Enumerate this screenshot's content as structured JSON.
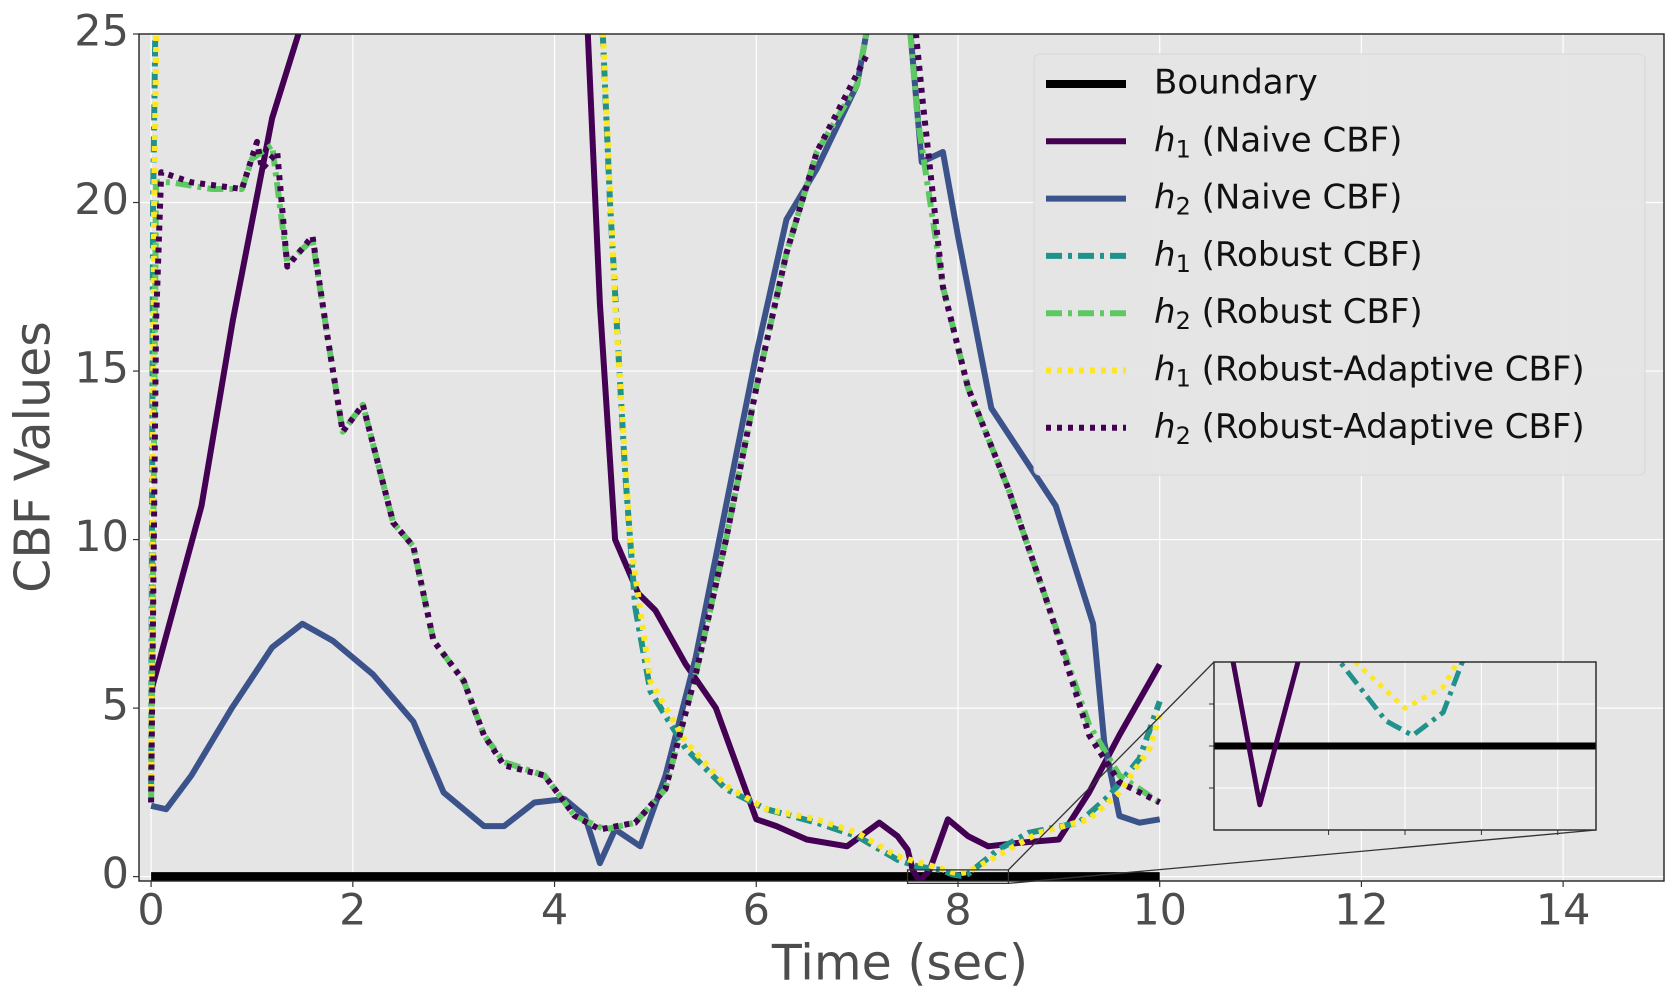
{
  "chart_data": {
    "type": "line",
    "xlabel": "Time (sec)",
    "ylabel": "CBF Values",
    "xlim": [
      -0.12,
      15
    ],
    "ylim": [
      -0.13,
      25
    ],
    "xticks": [
      0,
      2,
      4,
      6,
      8,
      10,
      12,
      14
    ],
    "yticks": [
      0,
      5,
      10,
      15,
      20,
      25
    ],
    "grid": true,
    "legend": "upper right",
    "series": [
      {
        "name": "Boundary",
        "color": "#000000",
        "style": "solid",
        "x": [
          0,
          10
        ],
        "values": [
          0,
          0
        ]
      },
      {
        "name": "h1 (Naive CBF)",
        "color": "#440154",
        "style": "solid",
        "x": [
          0,
          0.5,
          0.81,
          1.2,
          1.46,
          1.6,
          3.0,
          4.3,
          4.45,
          4.6,
          4.83,
          5.0,
          5.3,
          5.6,
          6.0,
          6.2,
          6.5,
          6.9,
          7.22,
          7.4,
          7.5,
          7.55,
          7.62,
          7.72,
          7.9,
          8.1,
          8.3,
          8.6,
          9.0,
          9.3,
          9.6,
          10.0
        ],
        "values": [
          5.5,
          11,
          16.5,
          22.5,
          25,
          27,
          null,
          27,
          17,
          10,
          8.4,
          7.9,
          6.3,
          5,
          1.7,
          1.5,
          1.1,
          0.9,
          1.6,
          1.2,
          0.8,
          0.2,
          -0.14,
          0.2,
          1.7,
          1.2,
          0.9,
          1.0,
          1.1,
          2.5,
          4.2,
          6.3
        ]
      },
      {
        "name": "h2 (Naive CBF)",
        "color": "#3b528b",
        "style": "solid",
        "x": [
          0,
          0.15,
          0.4,
          0.8,
          1.2,
          1.5,
          1.8,
          2.2,
          2.6,
          2.9,
          3.3,
          3.5,
          3.8,
          4.1,
          4.3,
          4.45,
          4.6,
          4.85,
          5.1,
          5.4,
          5.7,
          6.0,
          6.3,
          6.6,
          7.0,
          7.15,
          7.3,
          7.5,
          7.64,
          7.85,
          8.0,
          8.33,
          8.97,
          9.34,
          9.45,
          9.6,
          9.8,
          10.0
        ],
        "values": [
          2.1,
          2.0,
          3,
          5,
          6.8,
          7.5,
          7,
          6,
          4.6,
          2.5,
          1.5,
          1.5,
          2.2,
          2.3,
          1.8,
          0.4,
          1.4,
          0.9,
          3.0,
          6.5,
          11,
          15.5,
          19.5,
          21,
          23.5,
          26,
          null,
          26,
          21.2,
          21.5,
          19,
          13.9,
          11,
          7.5,
          4,
          1.8,
          1.6,
          1.7
        ]
      },
      {
        "name": "h1 (Robust CBF)",
        "color": "#21918c",
        "style": "dashdot",
        "x": [
          0,
          0.02,
          0.05,
          2.0,
          4.45,
          4.55,
          4.7,
          4.8,
          4.95,
          5.3,
          5.7,
          6.1,
          6.6,
          7.0,
          7.4,
          7.6,
          7.83,
          7.95,
          8.02,
          8.1,
          8.15,
          8.4,
          8.7,
          9.2,
          9.5,
          9.8,
          10.0
        ],
        "values": [
          2.5,
          20,
          27,
          null,
          27,
          20,
          12,
          8,
          5.5,
          3.8,
          2.6,
          2.0,
          1.6,
          1.2,
          0.5,
          0.3,
          0.2,
          0.06,
          0.025,
          0.08,
          0.2,
          0.8,
          1.3,
          1.6,
          2.4,
          3.5,
          5.2
        ]
      },
      {
        "name": "h2 (Robust CBF)",
        "color": "#5ec962",
        "style": "dashdot",
        "x": [
          0,
          0.05,
          0.2,
          0.6,
          0.9,
          1.0,
          1.2,
          1.35,
          1.6,
          1.75,
          1.9,
          2.1,
          2.4,
          2.6,
          2.8,
          3.1,
          3.3,
          3.5,
          3.9,
          4.2,
          4.5,
          4.8,
          5.1,
          5.4,
          5.7,
          6.0,
          6.3,
          6.6,
          7.0,
          7.15,
          7.3,
          7.5,
          7.6,
          7.85,
          8.1,
          8.5,
          8.9,
          9.3,
          9.6,
          10.0
        ],
        "values": [
          2.2,
          20.6,
          20.6,
          20.4,
          20.4,
          21.3,
          21.7,
          18.2,
          18.9,
          16,
          13.2,
          14,
          10.5,
          9.8,
          7,
          5.8,
          4.2,
          3.4,
          3.0,
          1.8,
          1.4,
          1.6,
          2.6,
          6,
          10,
          14.5,
          18.5,
          21.5,
          23.5,
          26,
          null,
          26,
          22.5,
          17.5,
          14.5,
          11.5,
          8,
          4.5,
          3,
          2.2
        ]
      },
      {
        "name": "h1 (Robust-Adaptive CBF)",
        "color": "#fde725",
        "style": "dotted",
        "x": [
          0,
          0.03,
          0.06,
          2.0,
          4.45,
          4.6,
          4.75,
          4.95,
          5.3,
          5.7,
          6.1,
          6.6,
          7.0,
          7.4,
          7.7,
          7.87,
          8.0,
          8.1,
          8.2,
          8.5,
          8.8,
          9.3,
          9.6,
          9.9,
          10.0
        ],
        "values": [
          2.6,
          20,
          27,
          null,
          27,
          17,
          10,
          5.8,
          4,
          2.7,
          2.0,
          1.7,
          1.3,
          0.6,
          0.35,
          0.2,
          0.09,
          0.14,
          0.3,
          0.8,
          1.3,
          1.7,
          2.5,
          3.8,
          4.8
        ]
      },
      {
        "name": "h2 (Robust-Adaptive CBF)",
        "color": "#440154",
        "style": "dotted",
        "x": [
          0,
          0.05,
          0.1,
          0.4,
          0.9,
          1.05,
          1.1,
          1.25,
          1.35,
          1.6,
          1.75,
          1.9,
          2.1,
          2.4,
          2.6,
          2.8,
          3.1,
          3.3,
          3.5,
          3.9,
          4.2,
          4.45,
          4.8,
          5.1,
          5.4,
          5.7,
          6.0,
          6.3,
          6.6,
          7.1,
          7.3,
          7.55,
          7.65,
          7.85,
          8.1,
          8.5,
          8.9,
          9.3,
          9.6,
          10.0
        ],
        "values": [
          2.2,
          16.5,
          20.9,
          20.6,
          20.4,
          21.8,
          21,
          21.5,
          18.1,
          19,
          16,
          13.2,
          14,
          10.5,
          9.8,
          7,
          5.8,
          4.2,
          3.3,
          3.0,
          1.8,
          1.4,
          1.6,
          2.6,
          6,
          10,
          14.5,
          18.5,
          21.5,
          24.4,
          null,
          26,
          23,
          17.5,
          14.5,
          11.5,
          8,
          4.2,
          2.8,
          2.2
        ]
      }
    ],
    "inset": {
      "xlim": [
        7.5,
        8.5
      ],
      "ylim": [
        -0.2,
        0.2
      ],
      "xticks": [
        7.8,
        8.0,
        8.2,
        8.4
      ],
      "yticks": [
        -0.1,
        0,
        0.1
      ]
    }
  }
}
